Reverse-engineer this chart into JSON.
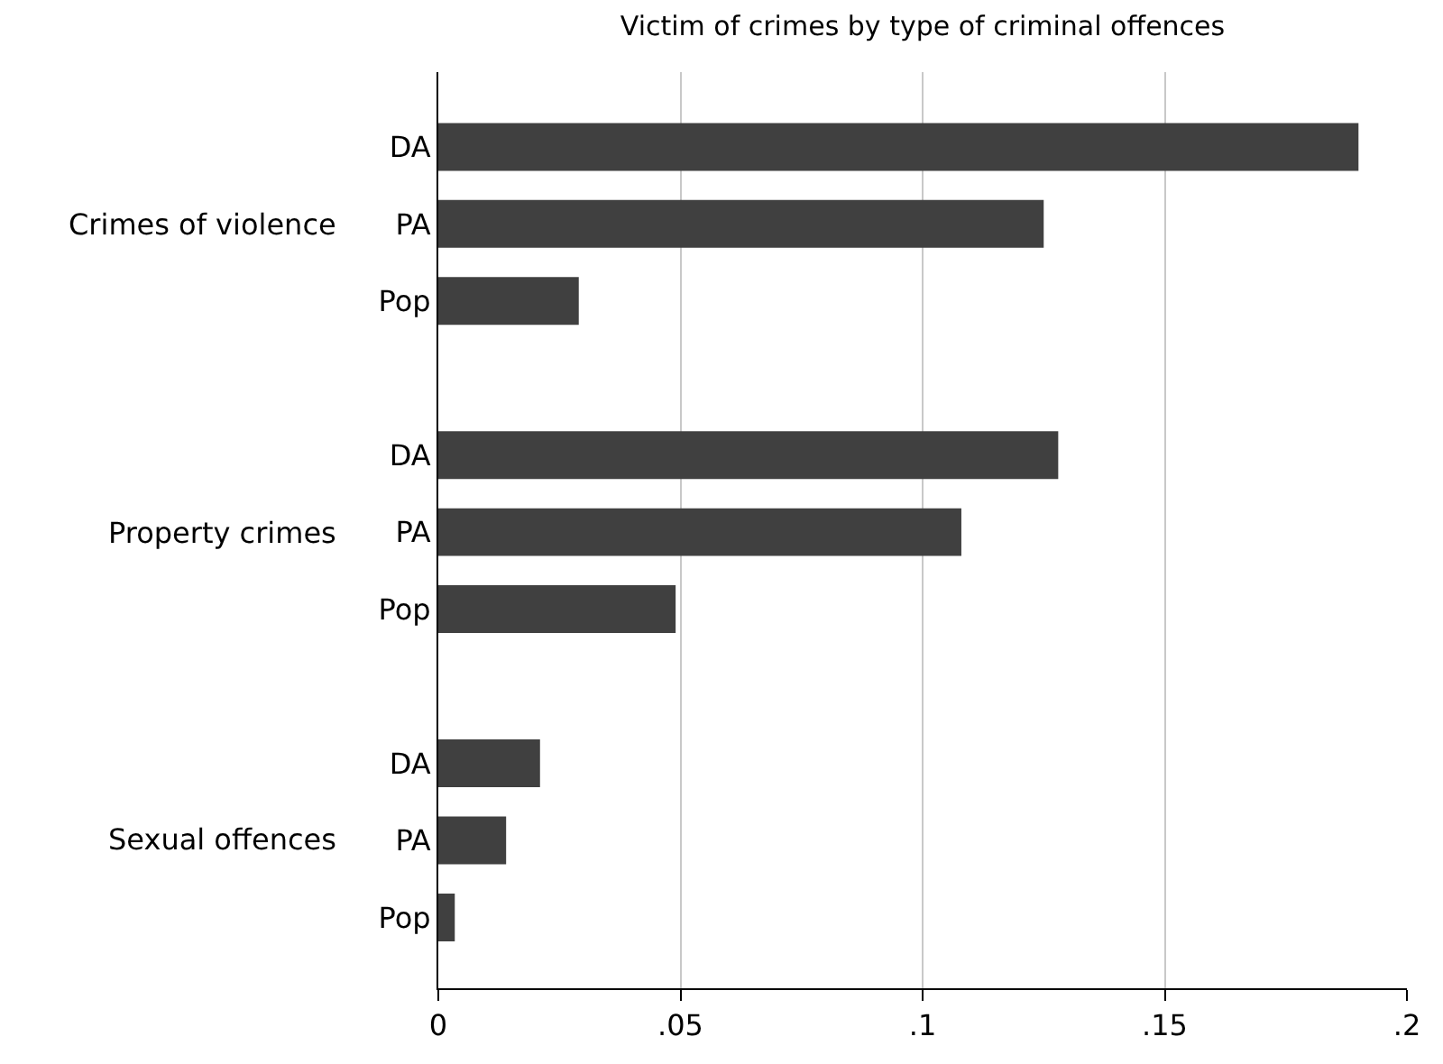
{
  "chart_data": {
    "type": "bar",
    "orientation": "horizontal",
    "title": "Victim of crimes by type of criminal offences",
    "categories": [
      "DA",
      "PA",
      "Pop",
      null,
      "DA",
      "PA",
      "Pop",
      null,
      "DA",
      "PA",
      "Pop"
    ],
    "values": [
      0.19,
      0.125,
      0.029,
      null,
      0.128,
      0.108,
      0.049,
      null,
      0.021,
      0.014,
      0.0034
    ],
    "color": "#404040",
    "annotations": [
      "Crimes of violence",
      "Property crimes",
      "Sexual offences"
    ],
    "xlim": [
      0,
      0.2
    ],
    "xticks": [
      0,
      {
        "value": 0.05,
        "label": ".05"
      },
      {
        "value": 0.1,
        "label": ".1"
      },
      {
        "value": 0.15,
        "label": ".15"
      },
      {
        "value": 0.2,
        "label": ".2"
      }
    ],
    "grid": "x",
    "legend": false
  }
}
